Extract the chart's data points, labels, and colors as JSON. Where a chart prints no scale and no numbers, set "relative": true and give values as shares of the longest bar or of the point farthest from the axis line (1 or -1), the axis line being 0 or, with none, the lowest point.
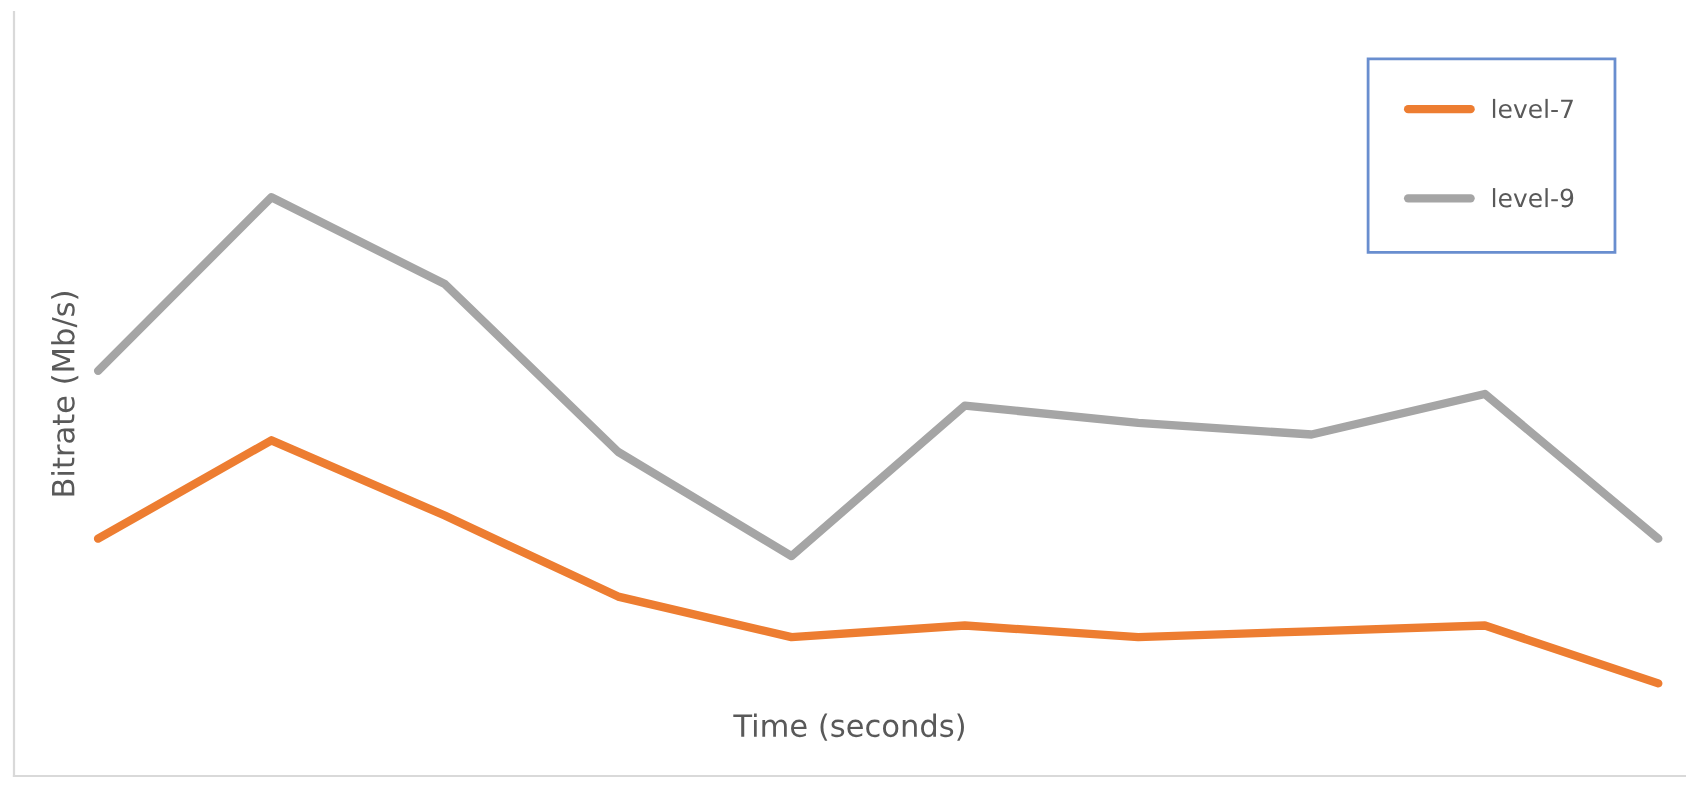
{
  "chart_data": {
    "type": "line",
    "relative": true,
    "xlabel": "Time (seconds)",
    "ylabel": "Bitrate (Mb/s)",
    "legend": "top right",
    "grid": false,
    "marker": "none",
    "line_style": "solid",
    "categories": [
      null,
      null,
      null,
      null,
      null,
      null,
      null,
      null,
      null,
      null
    ],
    "series": [
      {
        "name": "level-7",
        "color": "#ed7d31",
        "values": [
          0.41,
          0.58,
          0.45,
          0.31,
          0.24,
          0.26,
          0.24,
          0.25,
          0.26,
          0.16
        ]
      },
      {
        "name": "level-9",
        "color": "#a5a5a5",
        "values": [
          0.7,
          1.0,
          0.85,
          0.56,
          0.38,
          0.64,
          0.61,
          0.59,
          0.66,
          0.41
        ]
      }
    ]
  }
}
